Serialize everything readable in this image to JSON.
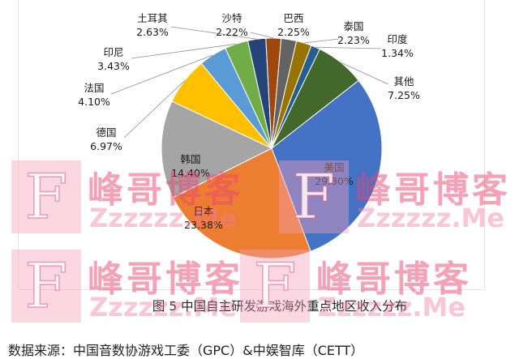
{
  "chart_data": {
    "type": "pie",
    "categories": [
      "美国",
      "日本",
      "韩国",
      "德国",
      "法国",
      "印尼",
      "土耳其",
      "沙特",
      "巴西",
      "泰国",
      "印度",
      "其他"
    ],
    "values": [
      29.8,
      23.38,
      14.4,
      6.97,
      4.1,
      3.43,
      2.63,
      2.22,
      2.25,
      2.23,
      1.34,
      7.25
    ],
    "value_labels": [
      "29.80%",
      "23.38%",
      "14.40%",
      "6.97%",
      "4.10%",
      "3.43%",
      "2.63%",
      "2.22%",
      "2.25%",
      "2.23%",
      "1.34%",
      "7.25%"
    ],
    "colors": [
      "#4472C4",
      "#ED7D31",
      "#A5A5A5",
      "#FFC000",
      "#5B9BD5",
      "#70AD47",
      "#264478",
      "#9E480E",
      "#636363",
      "#997300",
      "#255E91",
      "#43682B"
    ],
    "caption": "图 5  中国自主研发游戏海外重点地区收入分布"
  },
  "footer": {
    "source": "数据来源：中国音数协游戏工委（GPC）&中娱智库（CETT）"
  },
  "watermark": {
    "logo_letter": "F",
    "title": "峰哥博客",
    "site": "Zzzzzz.Me"
  }
}
